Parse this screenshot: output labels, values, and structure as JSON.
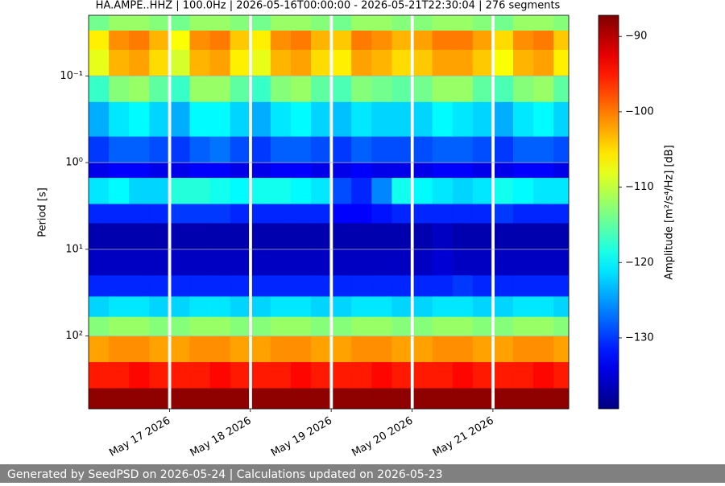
{
  "chart_data": {
    "type": "spectrogram",
    "title": "HA.AMPE..HHZ | 100.0Hz | 2026-05-16T00:00:00 - 2026-05-21T22:30:04 | 276 segments",
    "ylabel": "Period [s]",
    "colorbar_label": "Amplitude [m²/s⁴/Hz] [dB]",
    "log_y": true,
    "grid": true,
    "colormap": "jet",
    "xlim": [
      "2026-05-16T00:00:00",
      "2026-05-21T22:30:04"
    ],
    "xticks": [
      {
        "value": "2026-05-17T00:00",
        "label": "May 17 2026"
      },
      {
        "value": "2026-05-18T00:00",
        "label": "May 18 2026"
      },
      {
        "value": "2026-05-19T00:00",
        "label": "May 19 2026"
      },
      {
        "value": "2026-05-20T00:00",
        "label": "May 20 2026"
      },
      {
        "value": "2026-05-21T00:00",
        "label": "May 21 2026"
      }
    ],
    "ylim": [
      0.02,
      690
    ],
    "yticks": [
      {
        "value": 0.1,
        "label": "10⁻¹"
      },
      {
        "value": 1,
        "label": "10⁰"
      },
      {
        "value": 10,
        "label": "10¹"
      },
      {
        "value": 100,
        "label": "10²"
      }
    ],
    "clim": [
      -139.4,
      -87.2
    ],
    "cticks": [
      {
        "value": -130,
        "label": "−130"
      },
      {
        "value": -120,
        "label": "−120"
      },
      {
        "value": -110,
        "label": "−110"
      },
      {
        "value": -100,
        "label": "−100"
      },
      {
        "value": -90,
        "label": "−90"
      }
    ],
    "x_edges": [
      "2026-05-16T00:00",
      "2026-05-16T06:00",
      "2026-05-16T12:00",
      "2026-05-16T18:00",
      "2026-05-16T23:30",
      "2026-05-17T00:30",
      "2026-05-17T06:00",
      "2026-05-17T12:00",
      "2026-05-17T18:00",
      "2026-05-17T23:30",
      "2026-05-18T00:30",
      "2026-05-18T06:00",
      "2026-05-18T12:00",
      "2026-05-18T18:00",
      "2026-05-18T23:30",
      "2026-05-19T00:30",
      "2026-05-19T06:00",
      "2026-05-19T12:00",
      "2026-05-19T18:00",
      "2026-05-19T23:30",
      "2026-05-20T00:30",
      "2026-05-20T06:00",
      "2026-05-20T12:00",
      "2026-05-20T18:00",
      "2026-05-20T23:30",
      "2026-05-21T00:30",
      "2026-05-21T06:00",
      "2026-05-21T12:00",
      "2026-05-21T18:00",
      "2026-05-21T22:30"
    ],
    "period_edges": [
      0.02,
      0.03,
      0.05,
      0.1,
      0.2,
      0.5,
      1,
      1.5,
      3,
      5,
      10,
      20,
      35,
      60,
      100,
      200,
      400,
      690
    ],
    "values": [
      [
        -114,
        -106,
        -108,
        -117,
        -124,
        -130,
        -134,
        -121,
        -131,
        -137,
        -136,
        -131,
        -122,
        -113,
        -102,
        -95,
        -88
      ],
      [
        -112,
        -101,
        -103,
        -113,
        -121,
        -128,
        -133,
        -120,
        -131,
        -137,
        -136,
        -131,
        -121,
        -112,
        -101,
        -95,
        -88
      ],
      [
        -112,
        -100,
        -102,
        -112,
        -120,
        -128,
        -133,
        -122,
        -131,
        -137,
        -136,
        -131,
        -121,
        -112,
        -101,
        -94,
        -88
      ],
      [
        -113,
        -103,
        -105,
        -115,
        -122,
        -129,
        -134,
        -122,
        -131,
        -137,
        -136,
        -131,
        -122,
        -113,
        -102,
        -95,
        -88
      ],
      [
        null,
        null,
        null,
        null,
        null,
        null,
        null,
        null,
        null,
        null,
        null,
        null,
        null,
        null,
        null,
        null,
        null
      ],
      [
        -114,
        -107,
        -109,
        -117,
        -124,
        -130,
        -134,
        -118,
        -130,
        -137,
        -136,
        -131,
        -122,
        -113,
        -102,
        -95,
        -88
      ],
      [
        -112,
        -101,
        -103,
        -112,
        -120,
        -128,
        -133,
        -118,
        -130,
        -137,
        -136,
        -131,
        -121,
        -112,
        -101,
        -95,
        -88
      ],
      [
        -112,
        -100,
        -102,
        -112,
        -120,
        -127,
        -133,
        -119,
        -130,
        -137,
        -136,
        -131,
        -121,
        -112,
        -101,
        -94,
        -88
      ],
      [
        -113,
        -104,
        -106,
        -115,
        -122,
        -129,
        -134,
        -120,
        -131,
        -137,
        -136,
        -131,
        -122,
        -113,
        -102,
        -95,
        -88
      ],
      [
        null,
        null,
        null,
        null,
        null,
        null,
        null,
        null,
        null,
        null,
        null,
        null,
        null,
        null,
        null,
        null,
        null
      ],
      [
        -114,
        -106,
        -108,
        -117,
        -124,
        -130,
        -134,
        -119,
        -131,
        -137,
        -136,
        -131,
        -122,
        -113,
        -102,
        -95,
        -88
      ],
      [
        -112,
        -101,
        -103,
        -113,
        -121,
        -128,
        -133,
        -119,
        -131,
        -137,
        -136,
        -131,
        -121,
        -112,
        -101,
        -95,
        -88
      ],
      [
        -112,
        -100,
        -102,
        -112,
        -120,
        -128,
        -133,
        -120,
        -131,
        -137,
        -136,
        -131,
        -121,
        -112,
        -101,
        -94,
        -88
      ],
      [
        -113,
        -103,
        -105,
        -115,
        -122,
        -129,
        -134,
        -121,
        -131,
        -137,
        -136,
        -131,
        -122,
        -113,
        -102,
        -95,
        -88
      ],
      [
        null,
        null,
        null,
        null,
        null,
        null,
        null,
        null,
        null,
        null,
        null,
        null,
        null,
        null,
        null,
        null,
        null
      ],
      [
        -114,
        -104,
        -106,
        -116,
        -123,
        -130,
        -134,
        -129,
        -133,
        -137,
        -136,
        -131,
        -122,
        -113,
        -102,
        -95,
        -88
      ],
      [
        -112,
        -100,
        -102,
        -113,
        -121,
        -128,
        -133,
        -131,
        -133,
        -137,
        -136,
        -131,
        -121,
        -112,
        -101,
        -95,
        -88
      ],
      [
        -112,
        -101,
        -103,
        -114,
        -122,
        -129,
        -134,
        -126,
        -132,
        -137,
        -136,
        -131,
        -121,
        -112,
        -101,
        -94,
        -88
      ],
      [
        -113,
        -103,
        -105,
        -115,
        -122,
        -129,
        -134,
        -119,
        -131,
        -137,
        -136,
        -131,
        -122,
        -113,
        -102,
        -95,
        -88
      ],
      [
        null,
        null,
        null,
        null,
        null,
        null,
        null,
        null,
        null,
        null,
        null,
        null,
        null,
        null,
        null,
        null,
        null
      ],
      [
        -113,
        -102,
        -104,
        -114,
        -122,
        -129,
        -134,
        -120,
        -131,
        -137,
        -136,
        -131,
        -122,
        -113,
        -102,
        -95,
        -88
      ],
      [
        -112,
        -100,
        -102,
        -112,
        -120,
        -128,
        -133,
        -121,
        -131,
        -136,
        -135,
        -131,
        -121,
        -112,
        -101,
        -95,
        -88
      ],
      [
        -112,
        -100,
        -102,
        -112,
        -121,
        -128,
        -133,
        -122,
        -131,
        -137,
        -136,
        -130,
        -121,
        -112,
        -101,
        -94,
        -88
      ],
      [
        -113,
        -102,
        -104,
        -115,
        -122,
        -129,
        -134,
        -121,
        -131,
        -137,
        -136,
        -131,
        -122,
        -113,
        -102,
        -95,
        -88
      ],
      [
        null,
        null,
        null,
        null,
        null,
        null,
        null,
        null,
        null,
        null,
        null,
        null,
        null,
        null,
        null,
        null,
        null
      ],
      [
        -114,
        -105,
        -107,
        -116,
        -124,
        -130,
        -134,
        -119,
        -130,
        -137,
        -136,
        -131,
        -122,
        -113,
        -102,
        -95,
        -88
      ],
      [
        -112,
        -101,
        -103,
        -113,
        -121,
        -128,
        -133,
        -120,
        -131,
        -137,
        -136,
        -131,
        -121,
        -112,
        -101,
        -95,
        -88
      ],
      [
        -112,
        -100,
        -102,
        -112,
        -120,
        -128,
        -133,
        -121,
        -131,
        -137,
        -136,
        -131,
        -121,
        -112,
        -101,
        -94,
        -88
      ],
      [
        -113,
        -104,
        -106,
        -115,
        -122,
        -129,
        -134,
        -121,
        -131,
        -137,
        -136,
        -131,
        -122,
        -113,
        -102,
        -95,
        -88
      ]
    ]
  },
  "footer": "Generated by SeedPSD on 2026-05-24 | Calculations updated on 2026-05-23"
}
